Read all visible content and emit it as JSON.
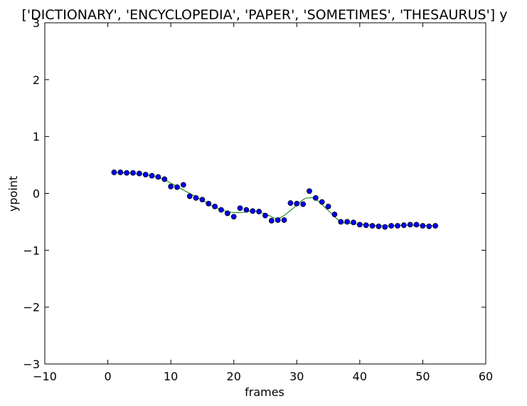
{
  "chart_data": {
    "type": "scatter",
    "title": "['DICTIONARY', 'ENCYCLOPEDIA', 'PAPER', 'SOMETIMES', 'THESAURUS'] y",
    "xlabel": "frames",
    "ylabel": "ypoint",
    "xlim": [
      -10,
      60
    ],
    "ylim": [
      -3,
      3
    ],
    "xticks": [
      -10,
      0,
      10,
      20,
      30,
      40,
      50,
      60
    ],
    "yticks": [
      -3,
      -2,
      -1,
      0,
      1,
      2,
      3
    ],
    "xtick_labels": [
      "−10",
      "0",
      "10",
      "20",
      "30",
      "40",
      "50",
      "60"
    ],
    "ytick_labels": [
      "−3",
      "−2",
      "−1",
      "0",
      "1",
      "2",
      "3"
    ],
    "grid": false,
    "series": [
      {
        "kind": "points",
        "color": "#0000ff",
        "edge_color": "#000000",
        "x": [
          1,
          2,
          3,
          4,
          5,
          6,
          7,
          8,
          9,
          10,
          11,
          12,
          13,
          14,
          15,
          16,
          17,
          18,
          19,
          20,
          21,
          22,
          23,
          24,
          25,
          26,
          27,
          28,
          29,
          30,
          31,
          32,
          33,
          34,
          35,
          36,
          37,
          38,
          39,
          40,
          41,
          42,
          43,
          44,
          45,
          46,
          47,
          48,
          49,
          50,
          51,
          52
        ],
        "y": [
          0.37,
          0.37,
          0.36,
          0.36,
          0.35,
          0.33,
          0.31,
          0.29,
          0.25,
          0.12,
          0.11,
          0.15,
          -0.05,
          -0.08,
          -0.11,
          -0.18,
          -0.23,
          -0.29,
          -0.35,
          -0.41,
          -0.26,
          -0.29,
          -0.31,
          -0.32,
          -0.39,
          -0.48,
          -0.47,
          -0.47,
          -0.17,
          -0.18,
          -0.19,
          0.04,
          -0.08,
          -0.15,
          -0.23,
          -0.37,
          -0.5,
          -0.5,
          -0.51,
          -0.55,
          -0.56,
          -0.57,
          -0.58,
          -0.59,
          -0.57,
          -0.57,
          -0.56,
          -0.55,
          -0.55,
          -0.57,
          -0.58,
          -0.57
        ]
      },
      {
        "kind": "line",
        "color": "#008000",
        "x": [
          1,
          3,
          5,
          7,
          9,
          11,
          13,
          15,
          17,
          19,
          21,
          23,
          25,
          27,
          29,
          31,
          32,
          33,
          35,
          37,
          39,
          41,
          43,
          45,
          47,
          49,
          52
        ],
        "y": [
          0.37,
          0.36,
          0.34,
          0.31,
          0.24,
          0.12,
          0.0,
          -0.12,
          -0.24,
          -0.32,
          -0.34,
          -0.31,
          -0.36,
          -0.44,
          -0.3,
          -0.11,
          -0.08,
          -0.1,
          -0.3,
          -0.5,
          -0.53,
          -0.55,
          -0.57,
          -0.57,
          -0.56,
          -0.56,
          -0.57
        ]
      }
    ]
  }
}
